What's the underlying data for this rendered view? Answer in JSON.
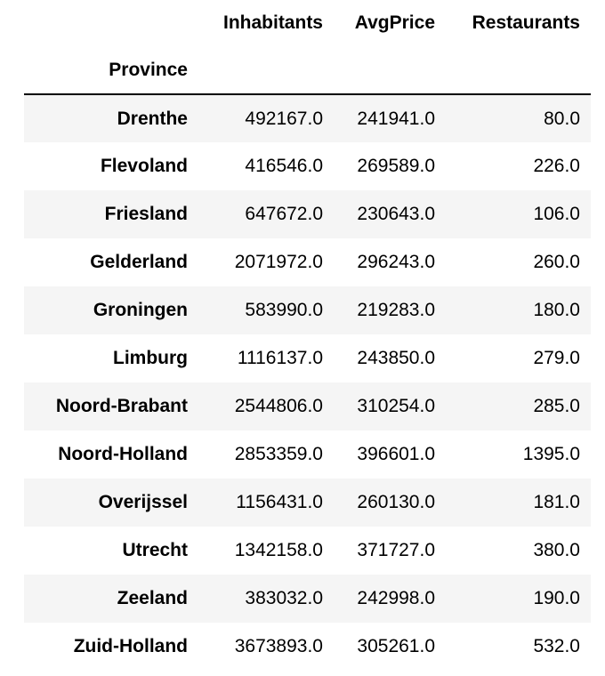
{
  "table": {
    "columns": [
      "Inhabitants",
      "AvgPrice",
      "Restaurants"
    ],
    "index_name": "Province"
  },
  "chart_data": {
    "type": "table",
    "index_name": "Province",
    "columns": [
      "Inhabitants",
      "AvgPrice",
      "Restaurants"
    ],
    "rows": [
      {
        "province": "Drenthe",
        "values": [
          "492167.0",
          "241941.0",
          "80.0"
        ]
      },
      {
        "province": "Flevoland",
        "values": [
          "416546.0",
          "269589.0",
          "226.0"
        ]
      },
      {
        "province": "Friesland",
        "values": [
          "647672.0",
          "230643.0",
          "106.0"
        ]
      },
      {
        "province": "Gelderland",
        "values": [
          "2071972.0",
          "296243.0",
          "260.0"
        ]
      },
      {
        "province": "Groningen",
        "values": [
          "583990.0",
          "219283.0",
          "180.0"
        ]
      },
      {
        "province": "Limburg",
        "values": [
          "1116137.0",
          "243850.0",
          "279.0"
        ]
      },
      {
        "province": "Noord-Brabant",
        "values": [
          "2544806.0",
          "310254.0",
          "285.0"
        ]
      },
      {
        "province": "Noord-Holland",
        "values": [
          "2853359.0",
          "396601.0",
          "1395.0"
        ]
      },
      {
        "province": "Overijssel",
        "values": [
          "1156431.0",
          "260130.0",
          "181.0"
        ]
      },
      {
        "province": "Utrecht",
        "values": [
          "1342158.0",
          "371727.0",
          "380.0"
        ]
      },
      {
        "province": "Zeeland",
        "values": [
          "383032.0",
          "242998.0",
          "190.0"
        ]
      },
      {
        "province": "Zuid-Holland",
        "values": [
          "3673893.0",
          "305261.0",
          "532.0"
        ]
      }
    ]
  }
}
